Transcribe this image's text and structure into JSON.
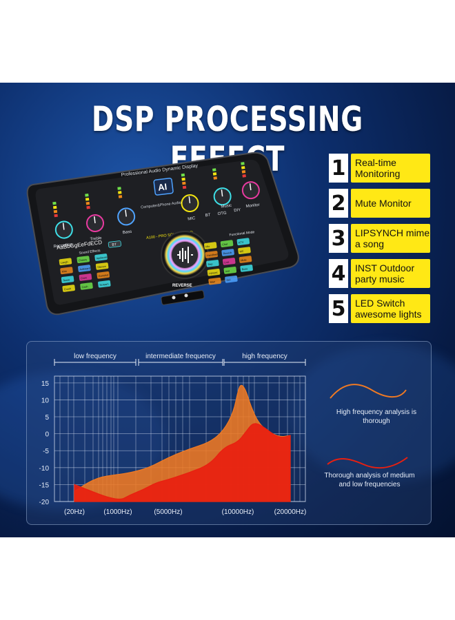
{
  "title": "DSP PROCESSING EFFECT",
  "features": [
    {
      "number": "1",
      "text": "Real-time Monitoring"
    },
    {
      "number": "2",
      "text": "Mute Monitor"
    },
    {
      "number": "3",
      "text": "LIPSYNCH mime a song"
    },
    {
      "number": "4",
      "text": "INST Outdoor party music"
    },
    {
      "number": "5",
      "text": "LED Switch awesome lights"
    }
  ],
  "device": {
    "display_label": "Professional Audio Dynamic Display",
    "ai_badge": "AI",
    "interface_label": "Computer&Phone Audio Interface",
    "model_label": "A100 - PRO SOUND CARD",
    "reverse_label": "REVERSE",
    "knob_labels": [
      "Recording",
      "Treble",
      "Bass",
      "MIC",
      "BT",
      "OTG",
      "Music",
      "DIY",
      "Monitor"
    ],
    "keys_row": "AaBbGgEeFdECD",
    "bt_label": "BT",
    "sound_effects_label": "Sound Effects",
    "functional_mode_label": "Functional Mode",
    "left_buttons": [
      "Laugh",
      "Cheers",
      "Applause",
      "Kiss",
      "Awkward",
      "Silence",
      "Tease",
      "Crow",
      "Gunshot",
      "Crush",
      "Cash",
      "Scream"
    ],
    "right_buttons": [
      "Mix",
      "Chat",
      "KTV",
      "Handheld",
      "Reverb",
      "MC",
      "Rap",
      "Live",
      "Mute",
      "Lipsync",
      "Inst",
      "Boss",
      "Man",
      "Girl"
    ],
    "colors": {
      "body": "#1c1d20",
      "accent_yellow": "#f3e410",
      "accent_orange": "#f08a1a",
      "accent_pink": "#e83a7a",
      "accent_cyan": "#3ee0e8",
      "accent_green": "#6fe04a"
    }
  },
  "chart_data": {
    "type": "area",
    "title": "",
    "band_labels": [
      "low frequency",
      "intermediate frequency",
      "high frequency"
    ],
    "x_tick_labels": [
      "(20Hz)",
      "(1000Hz)",
      "(5000Hz)",
      "(10000Hz)",
      "(20000Hz)"
    ],
    "y_ticks": [
      15,
      10,
      5,
      0,
      -5,
      -10,
      -15,
      -20
    ],
    "ylim": [
      -20,
      17
    ],
    "series": [
      {
        "color": "#f07a23",
        "x": [
          20,
          500,
          1000,
          2000,
          3500,
          5000,
          6500,
          8000,
          9000,
          9700,
          10000,
          10600,
          11500,
          12500,
          14000,
          16000,
          18000,
          20000
        ],
        "values": [
          -17,
          -13,
          -12,
          -11.5,
          -10,
          -7,
          -4.5,
          -2.5,
          1,
          6.5,
          12.5,
          14.8,
          13,
          8,
          3,
          0.5,
          -1,
          -0.5
        ]
      },
      {
        "color": "#e82010",
        "x": [
          20,
          1000,
          2000,
          3000,
          4000,
          5000,
          6500,
          8000,
          9000,
          10000,
          11500,
          13000,
          15000,
          17000,
          18500,
          20000
        ],
        "values": [
          -15,
          -20,
          -18,
          -16.5,
          -14.5,
          -13.5,
          -11.5,
          -9,
          -4,
          -2.5,
          0.5,
          3.5,
          2,
          -0.5,
          -1.2,
          -0.5
        ]
      }
    ]
  },
  "legend": {
    "orange_note": "High frequency analysis is thorough",
    "red_note": "Thorough analysis of medium and low frequencies",
    "orange_color": "#f07a23",
    "red_color": "#e82010"
  }
}
